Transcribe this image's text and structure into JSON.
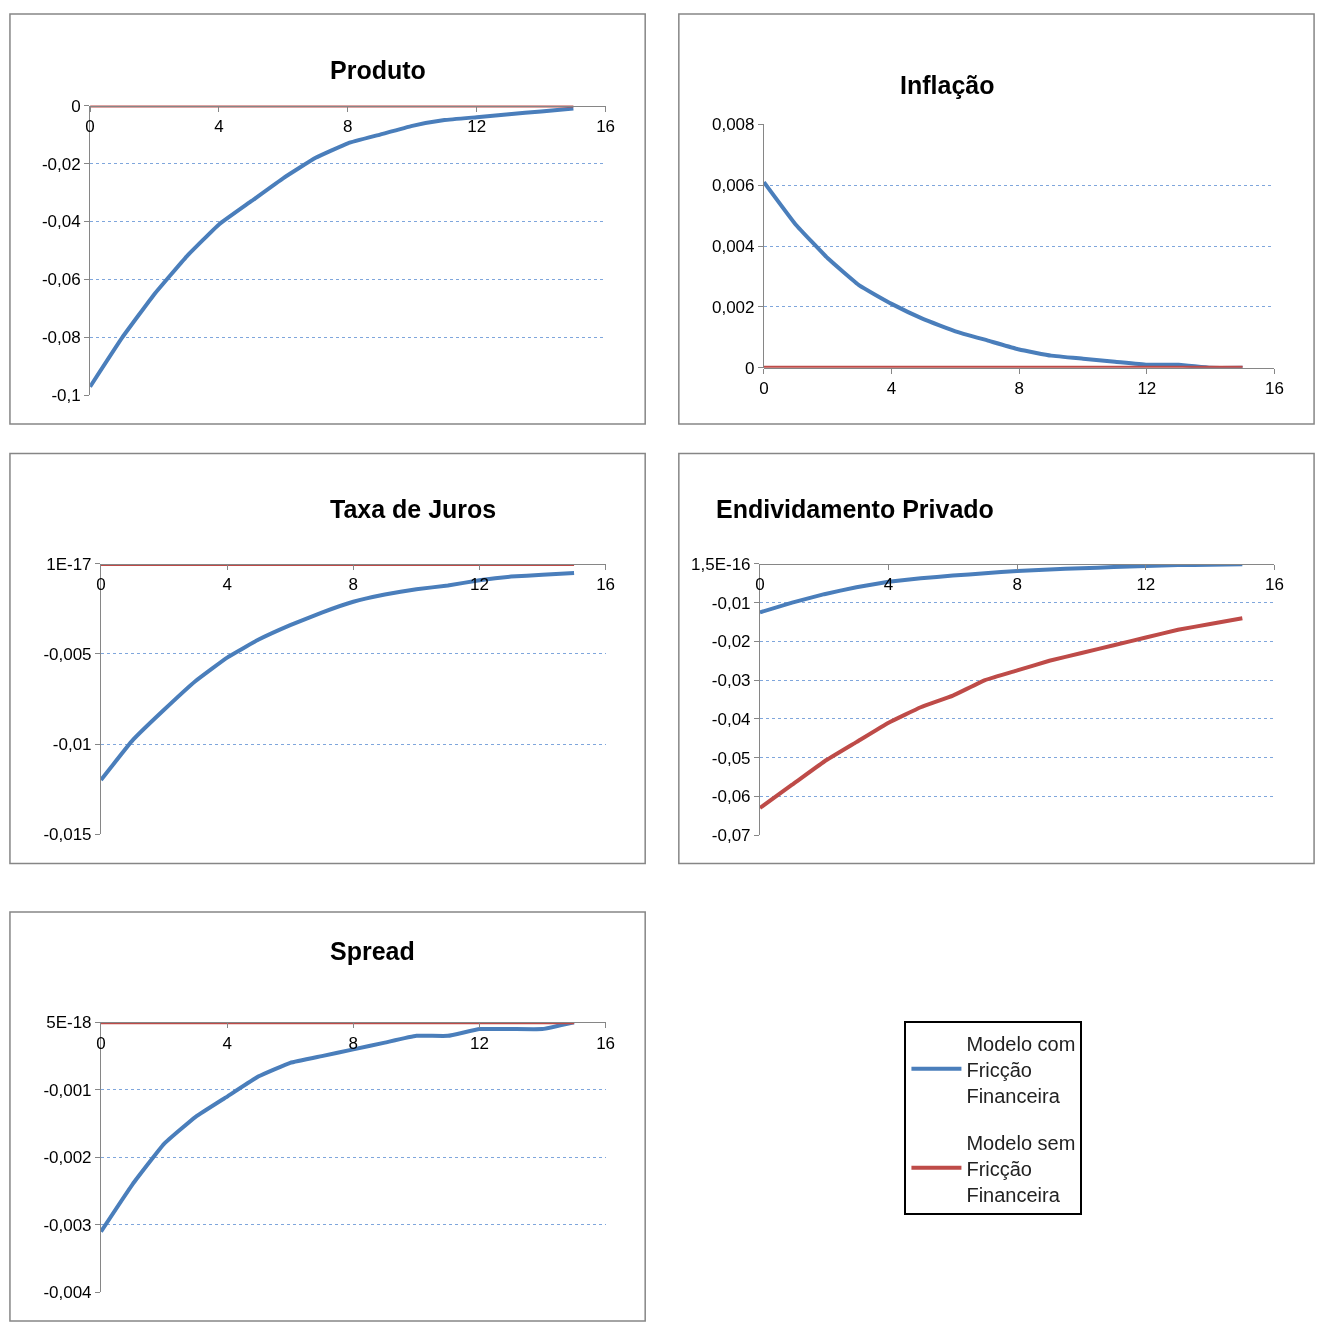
{
  "chart_data": [
    {
      "type": "line",
      "title": "Produto",
      "x": [
        0,
        1,
        2,
        3,
        4,
        5,
        6,
        7,
        8,
        9,
        10,
        11,
        12,
        13,
        14,
        15
      ],
      "xlim": [
        0,
        16
      ],
      "xticks": [
        0,
        4,
        8,
        12,
        16
      ],
      "ylim": [
        -0.1,
        0
      ],
      "yticks": [
        {
          "value": 0,
          "label": "0"
        },
        {
          "value": -0.02,
          "label": "-0,02"
        },
        {
          "value": -0.04,
          "label": "-0,04"
        },
        {
          "value": -0.06,
          "label": "-0,06"
        },
        {
          "value": -0.08,
          "label": "-0,08"
        },
        {
          "value": -0.1,
          "label": "-0,1"
        }
      ],
      "grid": "y",
      "legend": "bottom right",
      "series": [
        {
          "name": "Modelo com Fricção Financeira",
          "color": "#4a7ebb",
          "values": [
            -0.097,
            -0.08,
            -0.065,
            -0.052,
            -0.041,
            -0.033,
            -0.025,
            -0.018,
            -0.013,
            -0.01,
            -0.007,
            -0.005,
            -0.004,
            -0.003,
            -0.002,
            -0.001
          ]
        },
        {
          "name": "Modelo sem Fricção Financeira",
          "color": "#be4b48",
          "values": [
            0,
            0,
            0,
            0,
            0,
            0,
            0,
            0,
            0,
            0,
            0,
            0,
            0,
            0,
            0,
            0
          ]
        }
      ]
    },
    {
      "type": "line",
      "title": "Inflação",
      "x": [
        0,
        1,
        2,
        3,
        4,
        5,
        6,
        7,
        8,
        9,
        10,
        11,
        12,
        13,
        14,
        15
      ],
      "xlim": [
        0,
        16
      ],
      "xticks": [
        0,
        4,
        8,
        12,
        16
      ],
      "ylim": [
        0,
        0.008
      ],
      "yticks": [
        {
          "value": 0,
          "label": "0"
        },
        {
          "value": 0.002,
          "label": "0,002"
        },
        {
          "value": 0.004,
          "label": "0,004"
        },
        {
          "value": 0.006,
          "label": "0,006"
        },
        {
          "value": 0.008,
          "label": "0,008"
        }
      ],
      "grid": "y",
      "series": [
        {
          "color": "#4a7ebb",
          "values": [
            0.0061,
            0.0047,
            0.0036,
            0.0027,
            0.0021,
            0.0016,
            0.0012,
            0.0009,
            0.0006,
            0.0004,
            0.0003,
            0.0002,
            0.0001,
            0.0001,
            0.0,
            0.0
          ]
        },
        {
          "color": "#be4b48",
          "values": [
            0,
            0,
            0,
            0,
            0,
            0,
            0,
            0,
            0,
            0,
            0,
            0,
            0,
            0,
            0,
            0
          ]
        }
      ]
    },
    {
      "type": "line",
      "title": "Taxa de Juros",
      "x": [
        0,
        1,
        2,
        3,
        4,
        5,
        6,
        7,
        8,
        9,
        10,
        11,
        12,
        13,
        14,
        15
      ],
      "xlim": [
        0,
        16
      ],
      "xticks": [
        0,
        4,
        8,
        12,
        16
      ],
      "ylim": [
        -0.015,
        1e-17
      ],
      "yticks": [
        {
          "value": 1e-17,
          "label": "1E-17"
        },
        {
          "value": -0.005,
          "label": "-0,005"
        },
        {
          "value": -0.01,
          "label": "-0,01"
        },
        {
          "value": -0.015,
          "label": "-0,015"
        }
      ],
      "grid": "y",
      "series": [
        {
          "color": "#4a7ebb",
          "values": [
            -0.012,
            -0.0098,
            -0.0081,
            -0.0065,
            -0.0052,
            -0.0042,
            -0.0034,
            -0.0027,
            -0.0021,
            -0.0017,
            -0.0014,
            -0.0012,
            -0.0009,
            -0.0007,
            -0.0006,
            -0.0005
          ]
        },
        {
          "color": "#be4b48",
          "values": [
            0,
            0,
            0,
            0,
            0,
            0,
            0,
            0,
            0,
            0,
            0,
            0,
            0,
            0,
            0,
            0
          ]
        }
      ]
    },
    {
      "type": "line",
      "title": "Endividamento Privado",
      "x": [
        0,
        1,
        2,
        3,
        4,
        5,
        6,
        7,
        8,
        9,
        10,
        11,
        12,
        13,
        14,
        15
      ],
      "xlim": [
        0,
        16
      ],
      "xticks": [
        0,
        4,
        8,
        12,
        16
      ],
      "ylim": [
        -0.07,
        1.5e-16
      ],
      "yticks": [
        {
          "value": 1.5e-16,
          "label": "1,5E-16"
        },
        {
          "value": -0.01,
          "label": "-0,01"
        },
        {
          "value": -0.02,
          "label": "-0,02"
        },
        {
          "value": -0.03,
          "label": "-0,03"
        },
        {
          "value": -0.04,
          "label": "-0,04"
        },
        {
          "value": -0.05,
          "label": "-0,05"
        },
        {
          "value": -0.06,
          "label": "-0,06"
        },
        {
          "value": -0.07,
          "label": "-0,07"
        }
      ],
      "grid": "y",
      "series": [
        {
          "color": "#4a7ebb",
          "values": [
            -0.0125,
            -0.01,
            -0.0078,
            -0.006,
            -0.0046,
            -0.0037,
            -0.003,
            -0.0024,
            -0.0018,
            -0.0014,
            -0.0011,
            -0.0008,
            -0.0005,
            -0.0003,
            -0.0002,
            -0.0001
          ]
        },
        {
          "color": "#be4b48",
          "values": [
            -0.063,
            -0.057,
            -0.051,
            -0.046,
            -0.041,
            -0.037,
            -0.034,
            -0.03,
            -0.0275,
            -0.025,
            -0.023,
            -0.021,
            -0.019,
            -0.017,
            -0.0155,
            -0.014
          ]
        }
      ]
    },
    {
      "type": "line",
      "title": "Spread",
      "x": [
        0,
        1,
        2,
        3,
        4,
        5,
        6,
        7,
        8,
        9,
        10,
        11,
        12,
        13,
        14,
        15
      ],
      "xlim": [
        0,
        16
      ],
      "xticks": [
        0,
        4,
        8,
        12,
        16
      ],
      "ylim": [
        -0.004,
        5e-18
      ],
      "yticks": [
        {
          "value": 5e-18,
          "label": "5E-18"
        },
        {
          "value": -0.001,
          "label": "-0,001"
        },
        {
          "value": -0.002,
          "label": "-0,002"
        },
        {
          "value": -0.003,
          "label": "-0,003"
        },
        {
          "value": -0.004,
          "label": "-0,004"
        }
      ],
      "grid": "y",
      "series": [
        {
          "color": "#4a7ebb",
          "values": [
            -0.0031,
            -0.0024,
            -0.0018,
            -0.0014,
            -0.0011,
            -0.0008,
            -0.0006,
            -0.0005,
            -0.0004,
            -0.0003,
            -0.0002,
            -0.0002,
            -0.0001,
            -0.0001,
            -0.0001,
            0.0
          ]
        },
        {
          "color": "#be4b48",
          "values": [
            0,
            0,
            0,
            0,
            0,
            0,
            0,
            0,
            0,
            0,
            0,
            0,
            0,
            0,
            0,
            0
          ]
        }
      ]
    }
  ]
}
